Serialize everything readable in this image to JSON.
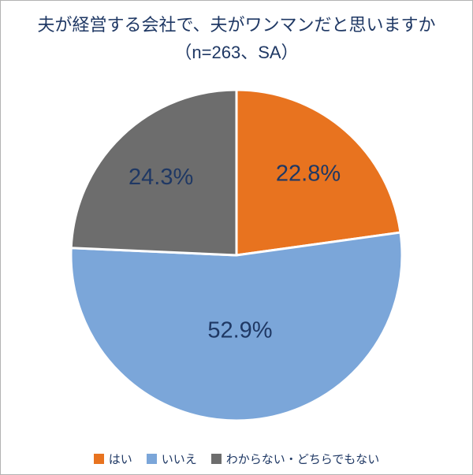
{
  "chart_data": {
    "type": "pie",
    "title_line1": "夫が経営する会社で、夫がワンマンだと思いますか",
    "title_line2": "（n=263、SA）",
    "categories": [
      "はい",
      "いいえ",
      "わからない・どちらでもない"
    ],
    "values": [
      22.8,
      52.9,
      24.3
    ],
    "labels": [
      "22.8%",
      "52.9%",
      "24.3%"
    ],
    "colors": [
      "#E8731F",
      "#7BA6D9",
      "#6D6D6D"
    ],
    "start_angle_deg": 0,
    "direction": "clockwise",
    "stroke_color": "#FFFFFF",
    "label_color": "#1F3864",
    "legend_position": "bottom"
  }
}
